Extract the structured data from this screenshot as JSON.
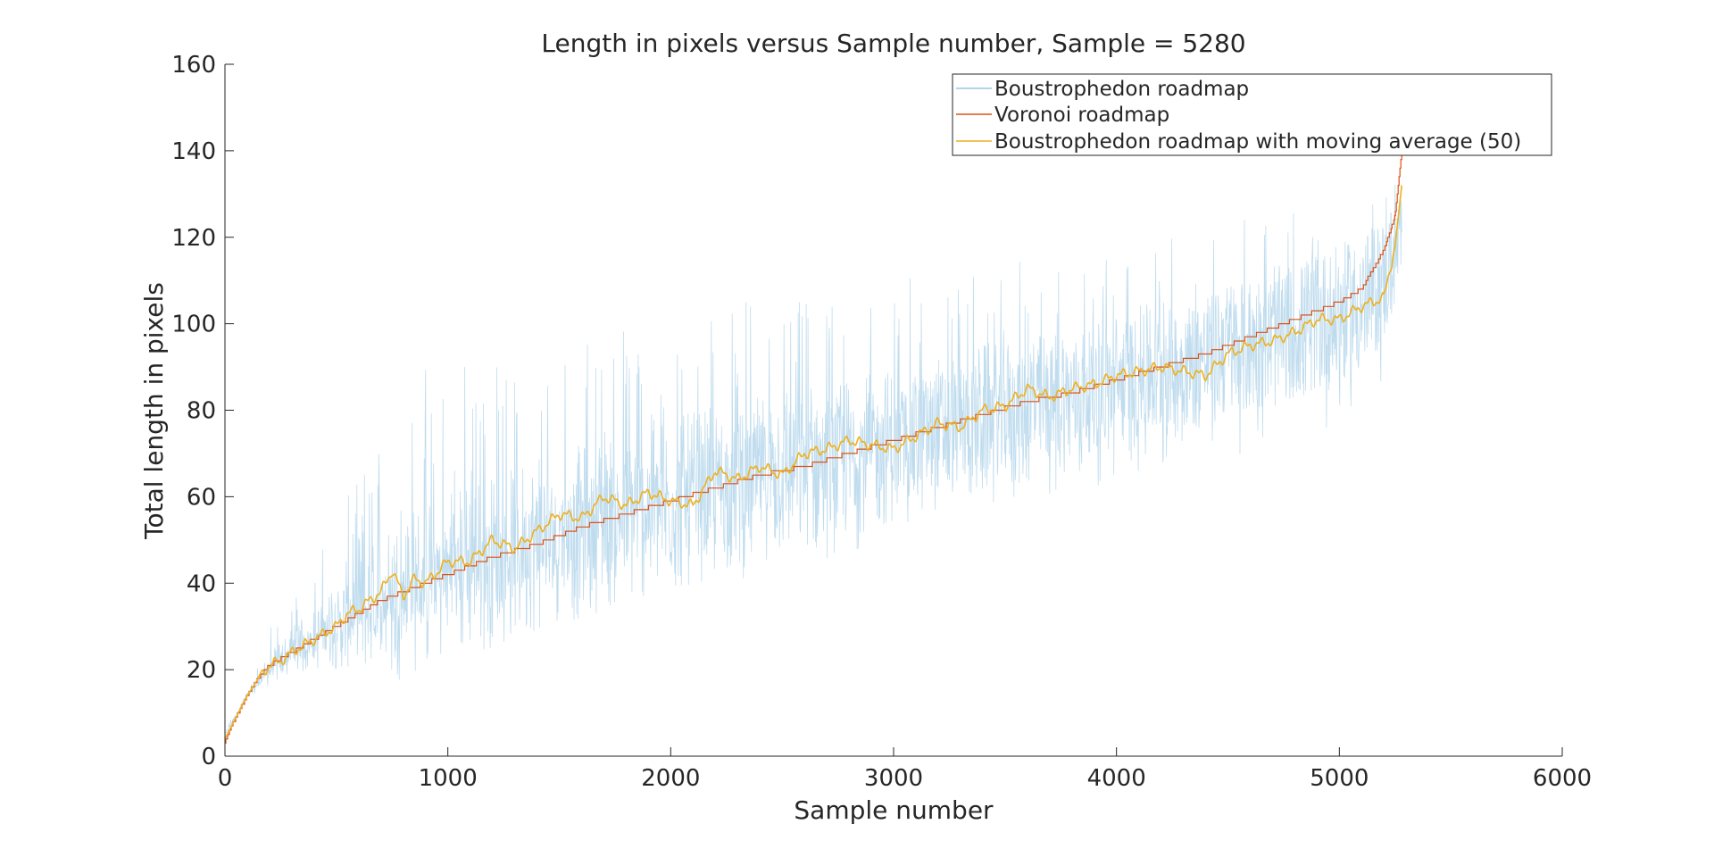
{
  "chart_data": {
    "type": "line",
    "title": "Length in pixels versus Sample number, Sample = 5280",
    "xlabel": "Sample number",
    "ylabel": "Total length in pixels",
    "xlim": [
      0,
      6000
    ],
    "ylim": [
      0,
      160
    ],
    "xticks": [
      0,
      1000,
      2000,
      3000,
      4000,
      5000,
      6000
    ],
    "yticks": [
      0,
      20,
      40,
      60,
      80,
      100,
      120,
      140,
      160
    ],
    "xtick_labels": [
      "0",
      "1000",
      "2000",
      "3000",
      "4000",
      "5000",
      "6000"
    ],
    "ytick_labels": [
      "0",
      "20",
      "40",
      "60",
      "80",
      "100",
      "120",
      "140",
      "160"
    ],
    "grid": false,
    "legend_position": "top-right",
    "sample_count": 5280,
    "series": [
      {
        "name": "Boustrophedon roadmap",
        "color": "#0072BD",
        "style": "noisy thin line",
        "x": [
          0,
          100,
          200,
          300,
          400,
          500,
          600,
          700,
          800,
          900,
          1000,
          1200,
          1400,
          1600,
          1800,
          2000,
          2200,
          2400,
          2600,
          2800,
          3000,
          3200,
          3400,
          3600,
          3800,
          4000,
          4200,
          4400,
          4600,
          4800,
          5000,
          5100,
          5200,
          5280
        ],
        "y": [
          5,
          14,
          20,
          24,
          27,
          30,
          33,
          35,
          37,
          40,
          42,
          45,
          49,
          52,
          56,
          58,
          61,
          64,
          67,
          69,
          72,
          75,
          78,
          80,
          83,
          86,
          89,
          92,
          95,
          98,
          102,
          104,
          110,
          120
        ],
        "spread_low": [
          5,
          13,
          18,
          20,
          21,
          22,
          23,
          24,
          25,
          26,
          27,
          28,
          30,
          32,
          34,
          36,
          39,
          42,
          44,
          47,
          50,
          52,
          55,
          57,
          60,
          62,
          65,
          68,
          70,
          73,
          75,
          78,
          85,
          100
        ],
        "spread_high": [
          6,
          16,
          30,
          40,
          45,
          55,
          65,
          80,
          90,
          92,
          93,
          95,
          98,
          100,
          102,
          104,
          105,
          106,
          107,
          108,
          110,
          112,
          113,
          115,
          116,
          118,
          120,
          122,
          125,
          128,
          130,
          132,
          134,
          135
        ]
      },
      {
        "name": "Voronoi roadmap",
        "color": "#D95319",
        "style": "staircase line",
        "x": [
          0,
          20,
          50,
          100,
          150,
          200,
          300,
          400,
          500,
          600,
          700,
          800,
          900,
          1000,
          1200,
          1400,
          1600,
          1800,
          2000,
          2200,
          2400,
          2600,
          2800,
          3000,
          3200,
          3400,
          3600,
          3800,
          4000,
          4200,
          4400,
          4600,
          4800,
          5000,
          5100,
          5200,
          5250,
          5280
        ],
        "y": [
          3,
          6,
          9,
          14,
          18,
          21,
          24,
          27,
          30,
          33,
          36,
          38,
          40,
          42,
          46,
          49,
          53,
          56,
          59,
          62,
          65,
          67,
          70,
          73,
          76,
          79,
          82,
          84,
          87,
          90,
          93,
          97,
          101,
          105,
          108,
          117,
          125,
          140
        ]
      },
      {
        "name": "Boustrophedon roadmap with moving average (50)",
        "color": "#EDB120",
        "style": "smoothed line",
        "x": [
          0,
          50,
          100,
          150,
          200,
          250,
          300,
          400,
          500,
          550,
          600,
          700,
          750,
          800,
          850,
          900,
          1000,
          1100,
          1200,
          1300,
          1400,
          1500,
          1600,
          1700,
          1800,
          1900,
          2000,
          2100,
          2200,
          2300,
          2400,
          2500,
          2600,
          2700,
          2800,
          2900,
          3000,
          3100,
          3200,
          3300,
          3400,
          3500,
          3600,
          3700,
          3800,
          3900,
          4000,
          4100,
          4200,
          4300,
          4400,
          4500,
          4600,
          4700,
          4800,
          4900,
          5000,
          5100,
          5200,
          5250,
          5280
        ],
        "y": [
          4,
          9,
          14,
          18,
          21,
          22,
          24,
          27,
          30,
          33,
          34,
          38,
          43,
          37,
          41,
          40,
          45,
          45,
          50,
          48,
          52,
          56,
          55,
          60,
          58,
          61,
          59,
          58,
          66,
          64,
          67,
          65,
          70,
          71,
          73,
          72,
          71,
          74,
          77,
          76,
          80,
          81,
          85,
          83,
          85,
          86,
          88,
          89,
          90,
          89,
          88,
          93,
          95,
          96,
          98,
          101,
          101,
          104,
          106,
          118,
          132
        ]
      }
    ]
  }
}
